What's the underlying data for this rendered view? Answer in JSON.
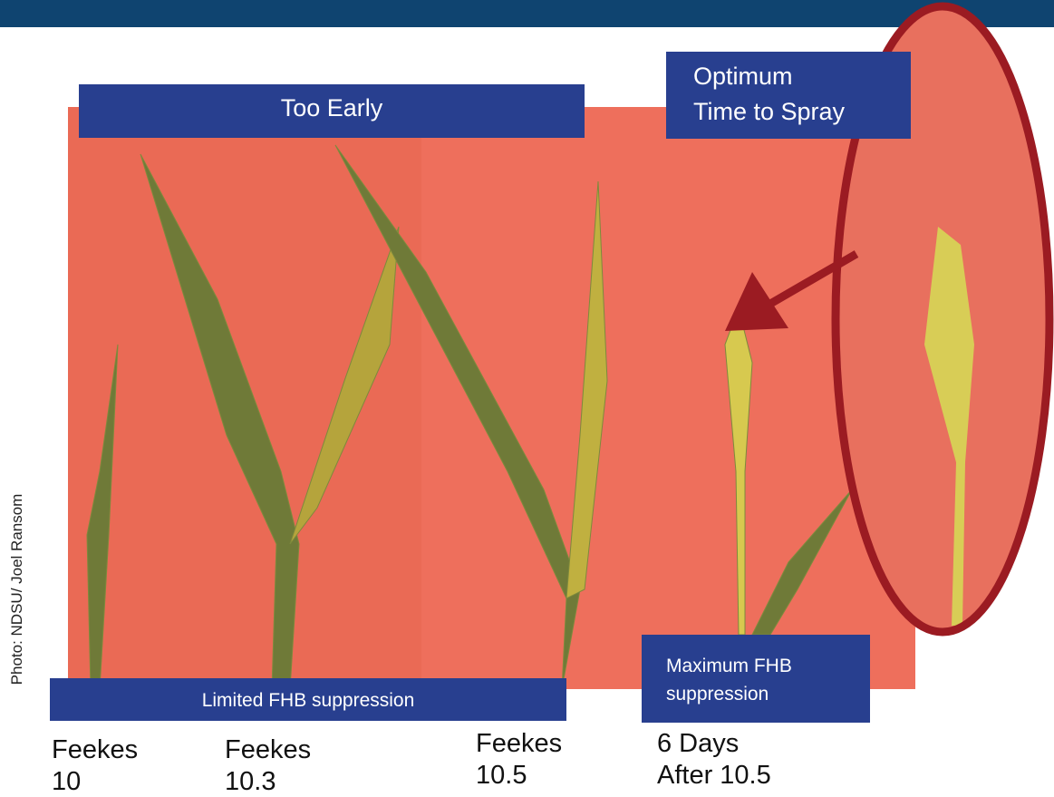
{
  "photo_credit": "Photo: NDSU/ Joel Ransom",
  "banners": {
    "too_early": "Too Early",
    "optimum": [
      "Optimum",
      "Time to Spray"
    ],
    "limited": "Limited FHB suppression",
    "maximum": [
      "Maximum FHB",
      "suppression"
    ]
  },
  "stages": [
    {
      "lines": [
        "Feekes",
        "10"
      ]
    },
    {
      "lines": [
        "Feekes",
        "10.3"
      ]
    },
    {
      "lines": [
        "Feekes",
        "10.5"
      ]
    },
    {
      "lines": [
        "6 Days",
        "After 10.5"
      ]
    }
  ]
}
